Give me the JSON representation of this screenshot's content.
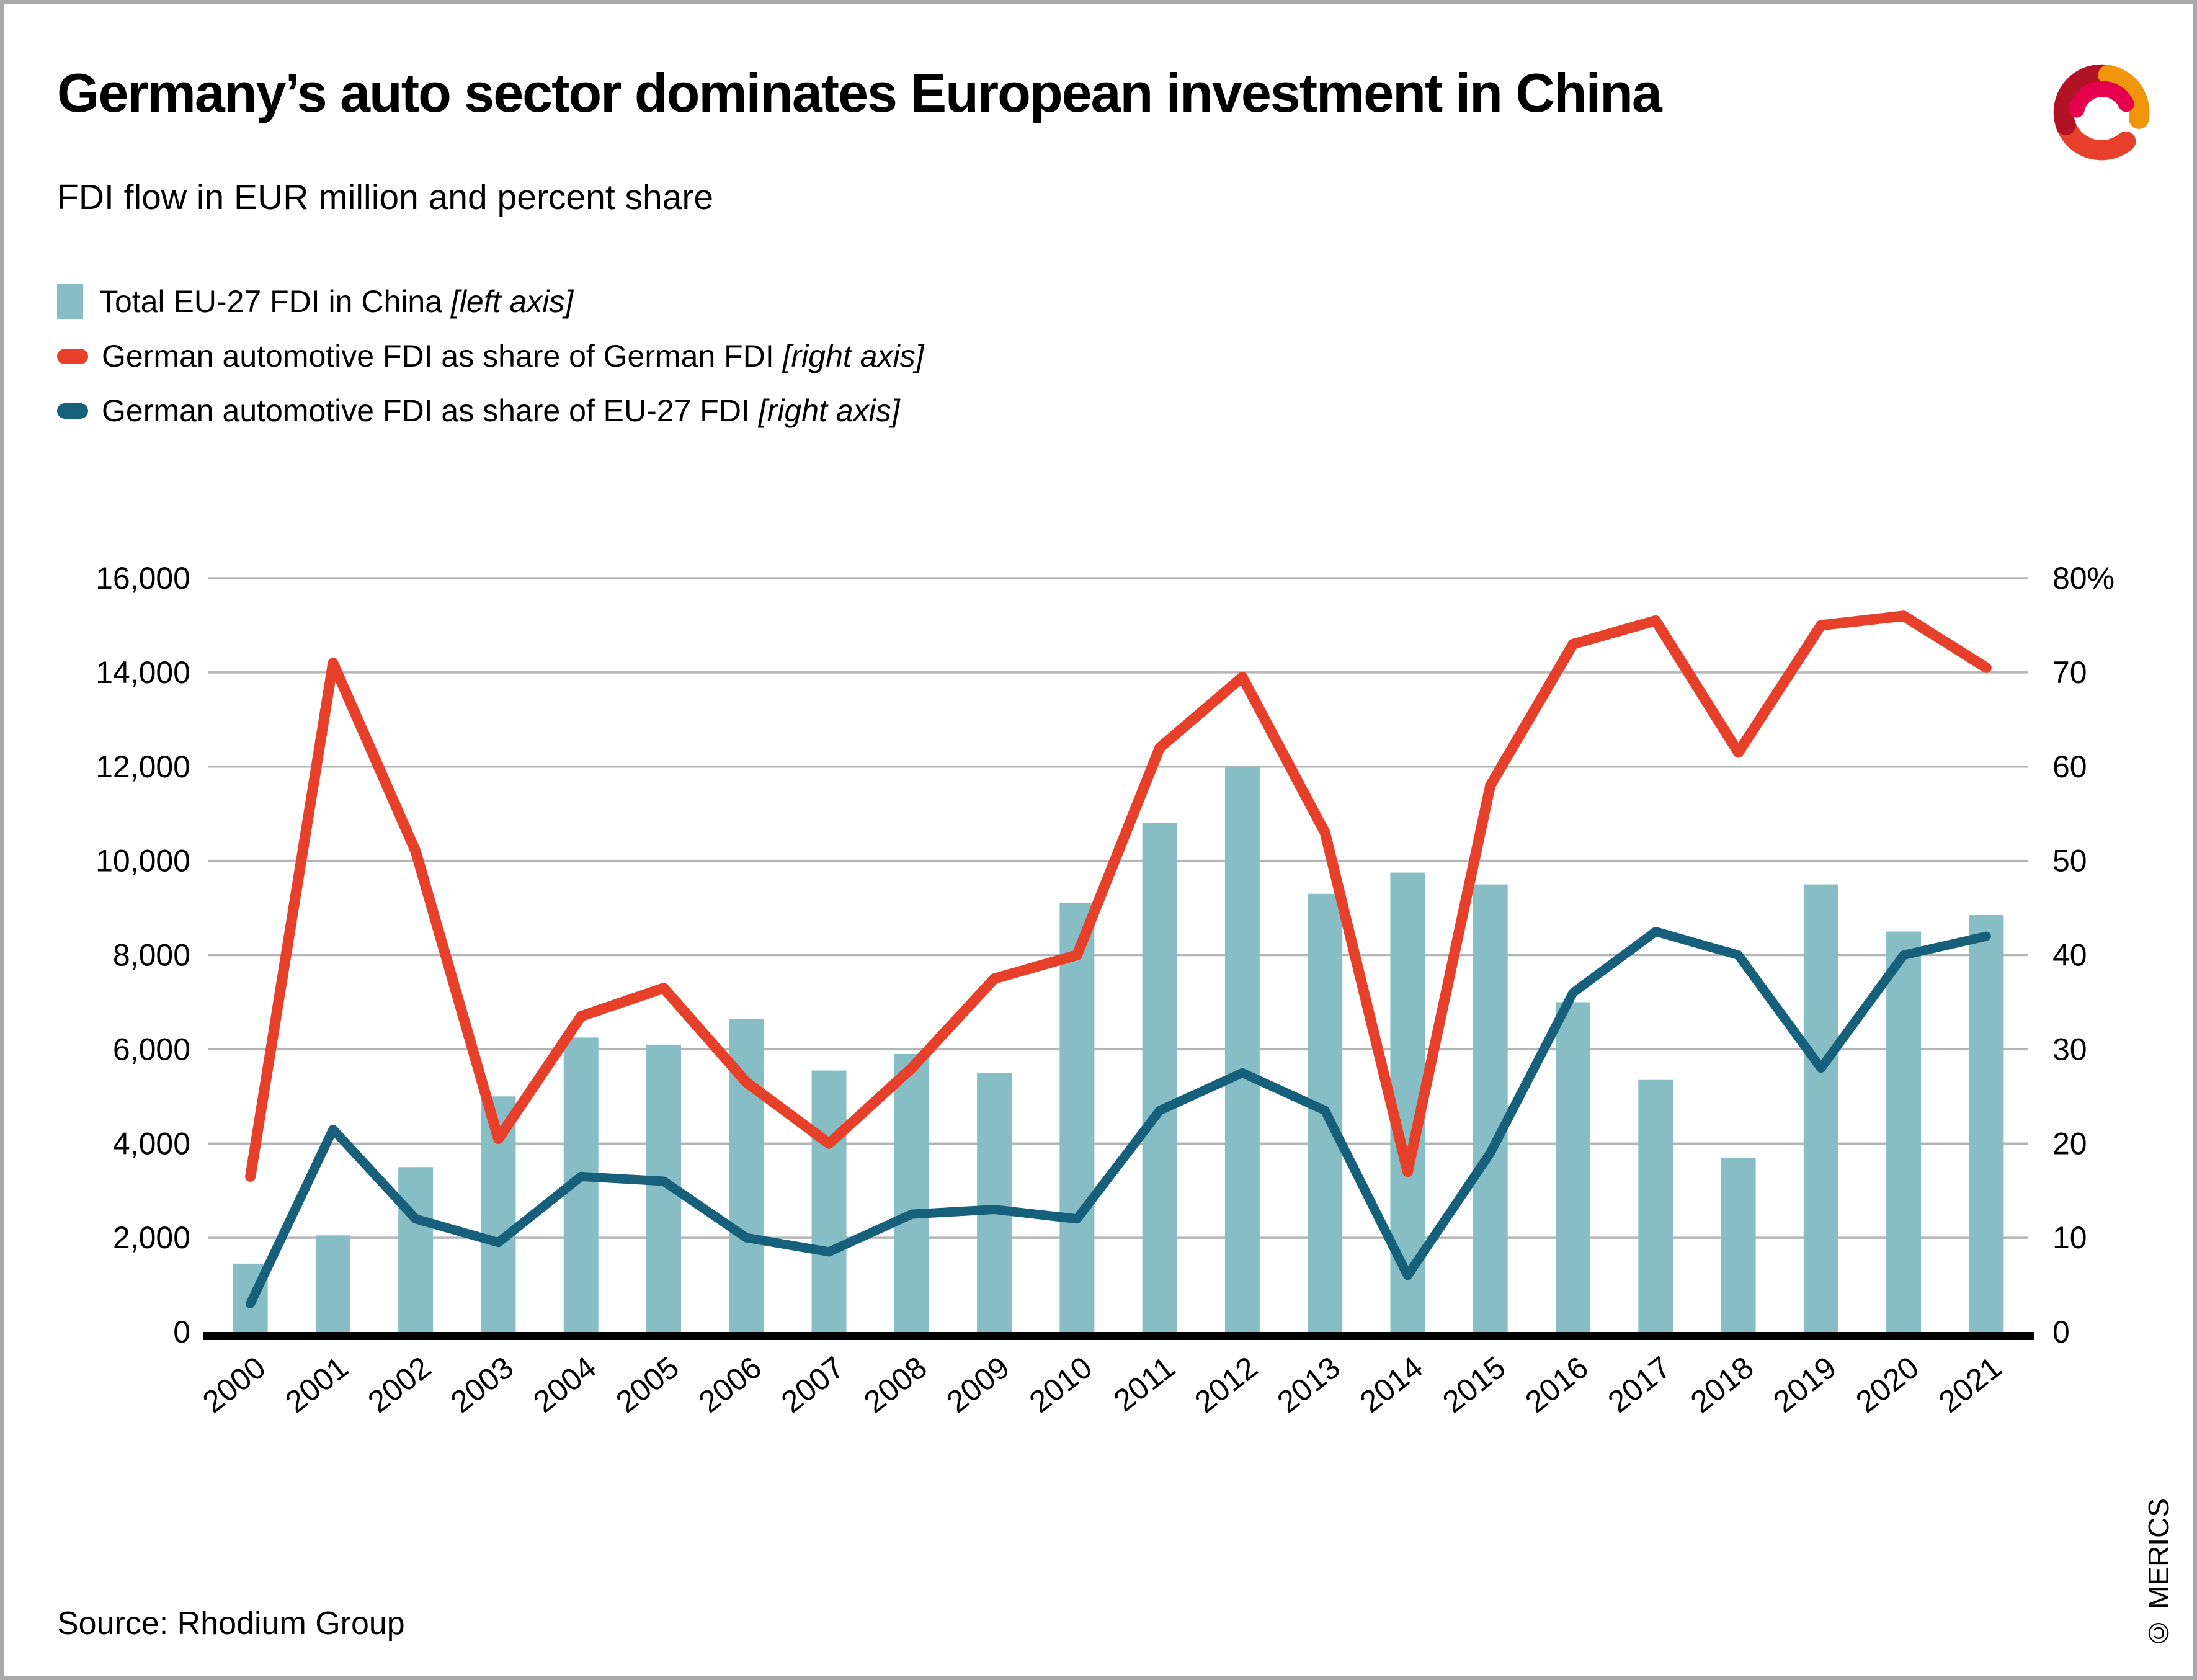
{
  "page": {
    "title": "Germany’s auto sector dominates European investment in China",
    "subtitle": "FDI flow in EUR million and percent share",
    "source": "Source: Rhodium Group",
    "copyright": "© MERICS"
  },
  "legend": {
    "items": [
      {
        "label": "Total EU-27 FDI in China",
        "axis_note": "[left axis]",
        "swatch": "bar-swatch",
        "color": "#87bec6"
      },
      {
        "label": "German automotive FDI as share of German FDI",
        "axis_note": "[right axis]",
        "swatch": "line-swatch",
        "color": "#e7402a"
      },
      {
        "label": "German automotive FDI as share of EU-27 FDI",
        "axis_note": "[right axis]",
        "swatch": "line-swatch",
        "color": "#16607b"
      }
    ]
  },
  "logo": {
    "name": "merics-logo",
    "colors": [
      "#b11226",
      "#f0940a",
      "#e5004d",
      "#e8402a"
    ]
  },
  "chart_data": {
    "type": "bar+line",
    "title": "Germany’s auto sector dominates European investment in China",
    "subtitle": "FDI flow in EUR million and percent share",
    "categories": [
      "2000",
      "2001",
      "2002",
      "2003",
      "2004",
      "2005",
      "2006",
      "2007",
      "2008",
      "2009",
      "2010",
      "2011",
      "2012",
      "2013",
      "2014",
      "2015",
      "2016",
      "2017",
      "2018",
      "2019",
      "2020",
      "2021"
    ],
    "series": [
      {
        "name": "Total EU-27 FDI in China",
        "type": "bar",
        "axis": "left",
        "unit": "EUR million",
        "values": [
          1450,
          2050,
          3500,
          5000,
          6250,
          6100,
          6650,
          5550,
          5900,
          5500,
          9100,
          10800,
          12000,
          9300,
          9750,
          9500,
          7000,
          5350,
          3700,
          9500,
          8500,
          8850
        ]
      },
      {
        "name": "German automotive FDI as share of German FDI",
        "type": "line",
        "axis": "right",
        "unit": "percent",
        "values": [
          16.5,
          71,
          51,
          20.5,
          33.5,
          36.5,
          26.5,
          20,
          28,
          37.5,
          40,
          62,
          69.5,
          53,
          17,
          58,
          73,
          75.5,
          61.5,
          75,
          76,
          70.5
        ]
      },
      {
        "name": "German automotive FDI as share of EU-27 FDI",
        "type": "line",
        "axis": "right",
        "unit": "percent",
        "values": [
          3,
          21.5,
          12,
          9.5,
          16.5,
          16,
          10,
          8.5,
          12.5,
          13,
          12,
          23.5,
          27.5,
          23.5,
          6,
          19,
          36,
          42.5,
          40,
          28,
          40,
          42
        ]
      }
    ],
    "left_axis": {
      "min": 0,
      "max": 16000,
      "tick_step": 2000,
      "tick_values": [
        0,
        2000,
        4000,
        6000,
        8000,
        10000,
        12000,
        14000,
        16000
      ],
      "tick_labels": [
        "0",
        "2,000",
        "4,000",
        "6,000",
        "8,000",
        "10,000",
        "12,000",
        "14,000",
        "16,000"
      ]
    },
    "right_axis": {
      "min": 0,
      "max": 80,
      "tick_step": 10,
      "tick_values": [
        0,
        10,
        20,
        30,
        40,
        50,
        60,
        70,
        80
      ],
      "tick_labels": [
        "0",
        "10",
        "20",
        "30",
        "40",
        "50",
        "60",
        "70",
        "80%"
      ]
    },
    "grid": true,
    "legend_position": "top-left",
    "colors": {
      "bar": "#87bec6",
      "line_german_share": "#e7402a",
      "line_eu_share": "#16607b",
      "grid": "#b5b5b5",
      "axis": "#000000",
      "text": "#000000"
    }
  }
}
